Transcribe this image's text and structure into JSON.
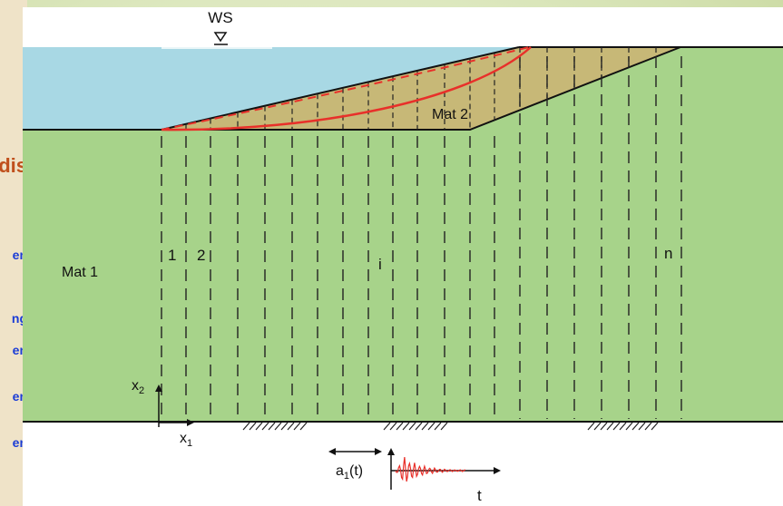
{
  "slide": {
    "partial_title": "idis",
    "partial_lines": [
      "en",
      "ng",
      "en",
      "en",
      "en"
    ]
  },
  "figure": {
    "water_surface_label": "WS",
    "material_1_label": "Mat 1",
    "material_2_label": "Mat 2",
    "slice_labels": [
      "1",
      "2",
      "i",
      "n"
    ],
    "axis_x1_label": "x",
    "axis_x1_sub": "1",
    "axis_x2_label": "x",
    "axis_x2_sub": "2",
    "excitation_label": "a",
    "excitation_sub": "1",
    "excitation_arg": "(t)",
    "time_axis_label": "t",
    "colors": {
      "water": "#a8d8e4",
      "soil": "#a7d38a",
      "layer": "#c7b877",
      "failure_surface": "#e8302a",
      "slide_background": "#dde8bf"
    }
  }
}
